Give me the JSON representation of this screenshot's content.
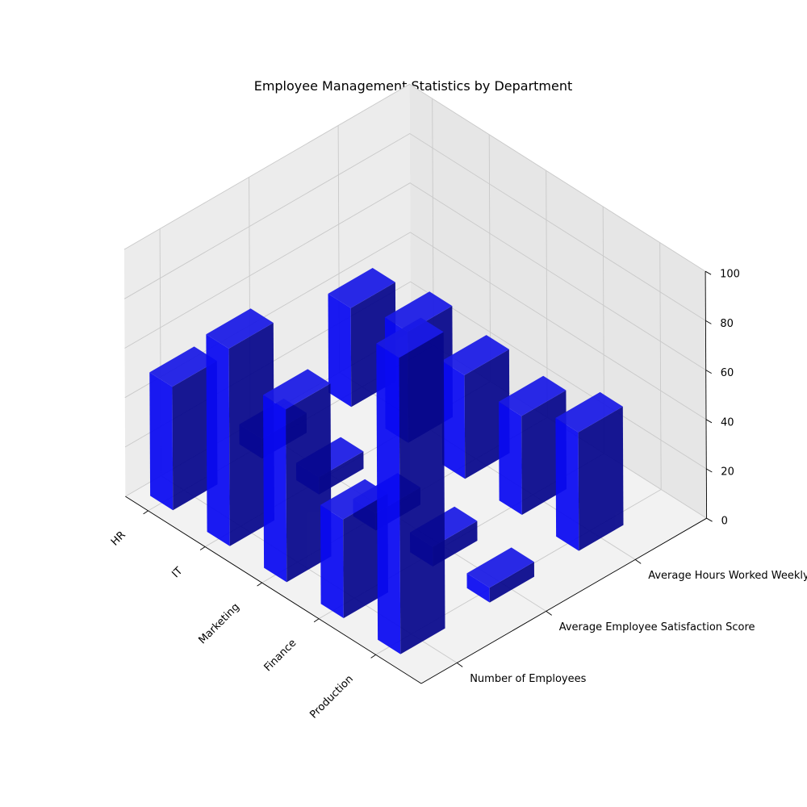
{
  "chart_data": {
    "type": "bar3d",
    "title": "Employee Management Statistics by Department",
    "categories": [
      "HR",
      "IT",
      "Marketing",
      "Finance",
      "Production"
    ],
    "metrics": [
      "Number of Employees",
      "Average Employee Satisfaction Score",
      "Average Hours Worked Weekly"
    ],
    "series": [
      {
        "name": "Number of Employees",
        "values": [
          50,
          80,
          70,
          40,
          120
        ]
      },
      {
        "name": "Average Employee Satisfaction Score",
        "values": [
          8,
          7,
          7,
          8,
          6
        ]
      },
      {
        "name": "Average Hours Worked Weekly",
        "values": [
          40,
          45,
          42,
          40,
          48
        ]
      }
    ],
    "zlim": [
      0,
      100
    ],
    "zticks": [
      0,
      20,
      40,
      60,
      80,
      100
    ],
    "bar_color": "#0000ff",
    "grid": true
  }
}
